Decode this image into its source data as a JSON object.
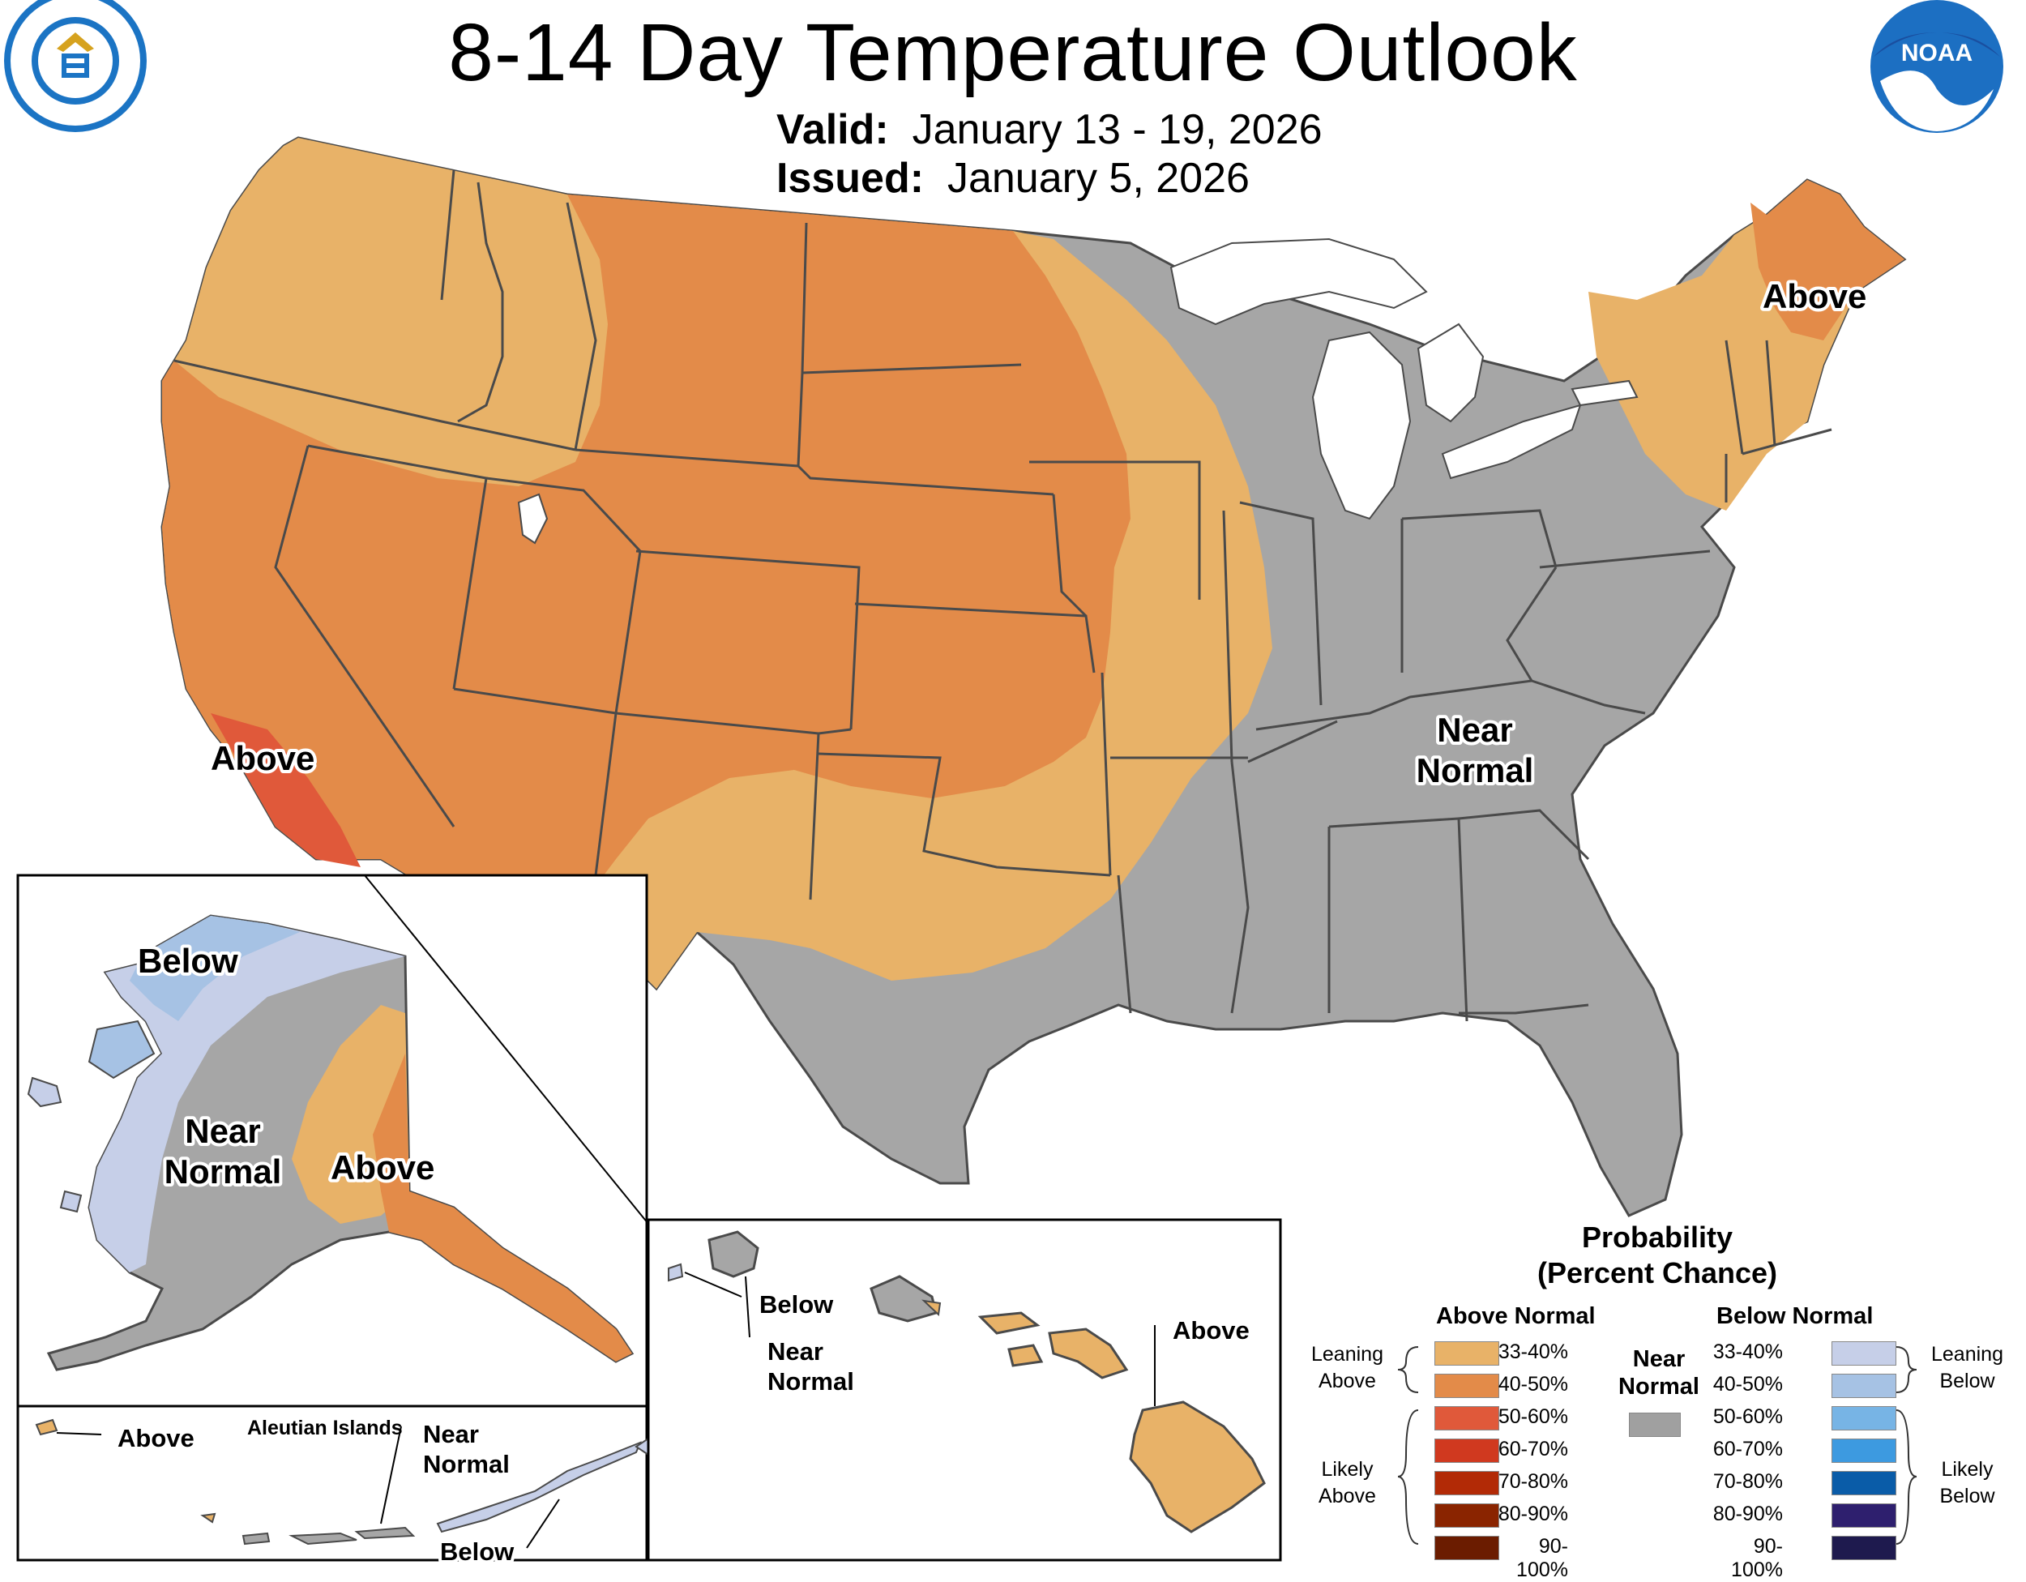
{
  "header": {
    "title": "8-14 Day Temperature Outlook",
    "valid_label": "Valid:",
    "valid_value": "January 13 - 19, 2026",
    "issued_label": "Issued:",
    "issued_value": "January 5, 2026"
  },
  "logos": {
    "left": "DEPARTMENT OF COMMERCE · UNITED STATES OF AMERICA",
    "right": "NOAA"
  },
  "map_labels": {
    "conus_above_ne": "Above",
    "conus_above_ca": "Above",
    "conus_near_1": "Near",
    "conus_near_2": "Normal",
    "ak_below": "Below",
    "ak_near_1": "Near",
    "ak_near_2": "Normal",
    "ak_above": "Above",
    "aleutian_title": "Aleutian Islands",
    "aleutian_above": "Above",
    "aleutian_near_1": "Near",
    "aleutian_near_2": "Normal",
    "aleutian_below": "Below",
    "hi_below": "Below",
    "hi_near_1": "Near",
    "hi_near_2": "Normal",
    "hi_above": "Above"
  },
  "legend": {
    "title_1": "Probability",
    "title_2": "(Percent Chance)",
    "above_header": "Above Normal",
    "below_header": "Below Normal",
    "near_1": "Near",
    "near_2": "Normal",
    "near_color": "#a0a0a0",
    "leaning_above_1": "Leaning",
    "leaning_above_2": "Above",
    "likely_above_1": "Likely",
    "likely_above_2": "Above",
    "leaning_below_1": "Leaning",
    "leaning_below_2": "Below",
    "likely_below_1": "Likely",
    "likely_below_2": "Below",
    "above_classes": [
      {
        "label": "33-40%",
        "color": "#e8b268"
      },
      {
        "label": "40-50%",
        "color": "#e38b49"
      },
      {
        "label": "50-60%",
        "color": "#e0593a"
      },
      {
        "label": "60-70%",
        "color": "#d0391f"
      },
      {
        "label": "70-80%",
        "color": "#b22a06"
      },
      {
        "label": "80-90%",
        "color": "#8a2400"
      },
      {
        "label": "90-100%",
        "color": "#6b1c00"
      }
    ],
    "below_classes": [
      {
        "label": "33-40%",
        "color": "#c6cfe8"
      },
      {
        "label": "40-50%",
        "color": "#a6c2e4"
      },
      {
        "label": "50-60%",
        "color": "#77b4e5"
      },
      {
        "label": "60-70%",
        "color": "#3d9ae0"
      },
      {
        "label": "70-80%",
        "color": "#0a5ca8"
      },
      {
        "label": "80-90%",
        "color": "#2e1f6e"
      },
      {
        "label": "90-100%",
        "color": "#1e1a4e"
      }
    ]
  }
}
